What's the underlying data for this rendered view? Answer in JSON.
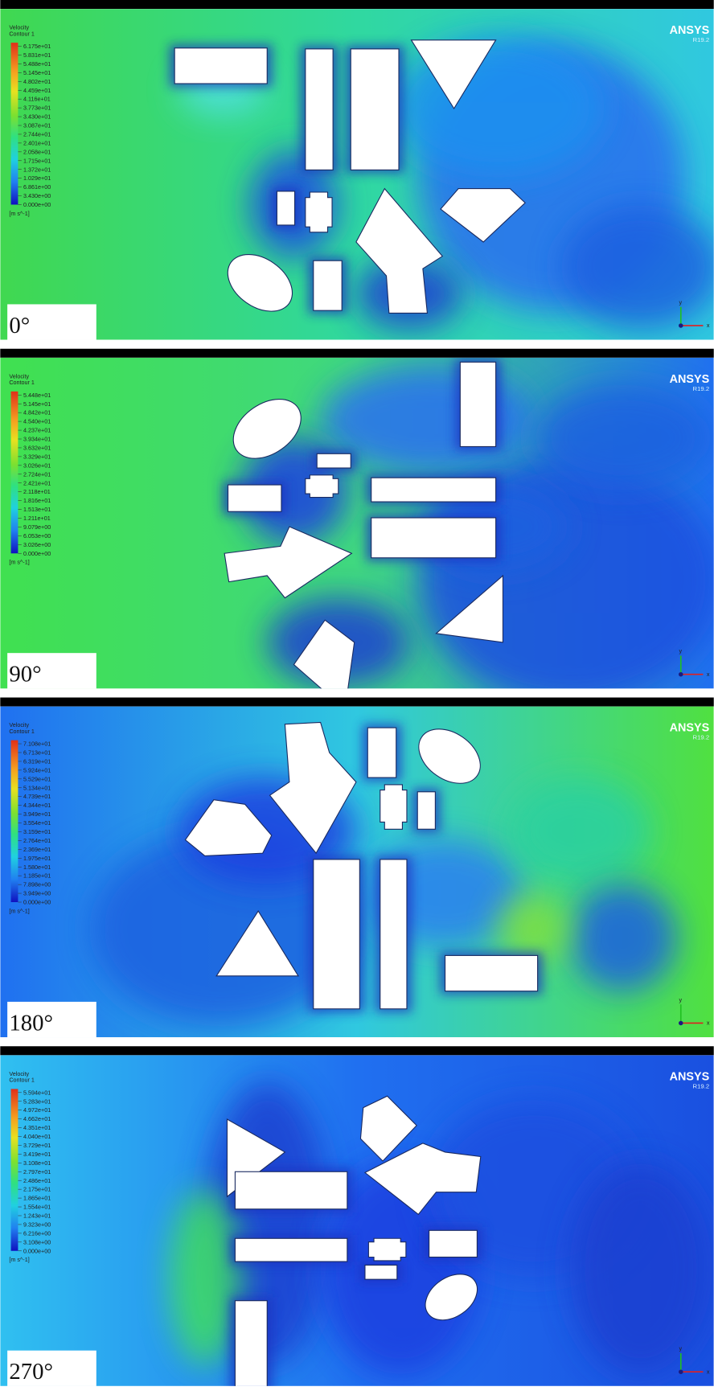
{
  "panels": [
    {
      "angle": "0°",
      "brand": "ANSYS",
      "version": "R19.2",
      "legend": {
        "title": "Velocity",
        "subtitle": "Contour 1",
        "unit": "[m s^-1]",
        "labels": [
          "6.175e+01",
          "5.831e+01",
          "5.488e+01",
          "5.145e+01",
          "4.802e+01",
          "4.459e+01",
          "4.116e+01",
          "3.773e+01",
          "3.430e+01",
          "3.087e+01",
          "2.744e+01",
          "2.401e+01",
          "2.058e+01",
          "1.715e+01",
          "1.372e+01",
          "1.029e+01",
          "6.861e+00",
          "3.430e+00",
          "0.000e+00"
        ]
      },
      "triad": {
        "x": "x",
        "y": "y"
      }
    },
    {
      "angle": "90°",
      "brand": "ANSYS",
      "version": "R19.2",
      "legend": {
        "title": "Velocity",
        "subtitle": "Contour 1",
        "unit": "[m s^-1]",
        "labels": [
          "5.448e+01",
          "5.145e+01",
          "4.842e+01",
          "4.540e+01",
          "4.237e+01",
          "3.934e+01",
          "3.632e+01",
          "3.329e+01",
          "3.026e+01",
          "2.724e+01",
          "2.421e+01",
          "2.118e+01",
          "1.816e+01",
          "1.513e+01",
          "1.211e+01",
          "9.079e+00",
          "6.053e+00",
          "3.026e+00",
          "0.000e+00"
        ]
      },
      "triad": {
        "x": "x",
        "y": "y"
      }
    },
    {
      "angle": "180°",
      "brand": "ANSYS",
      "version": "R19.2",
      "legend": {
        "title": "Velocity",
        "subtitle": "Contour 1",
        "unit": "[m s^-1]",
        "labels": [
          "7.108e+01",
          "6.713e+01",
          "6.319e+01",
          "5.924e+01",
          "5.529e+01",
          "5.134e+01",
          "4.739e+01",
          "4.344e+01",
          "3.949e+01",
          "3.554e+01",
          "3.159e+01",
          "2.764e+01",
          "2.369e+01",
          "1.975e+01",
          "1.580e+01",
          "1.185e+01",
          "7.898e+00",
          "3.949e+00",
          "0.000e+00"
        ]
      },
      "triad": {
        "x": "x",
        "y": "y"
      }
    },
    {
      "angle": "270°",
      "brand": "ANSYS",
      "version": "R19.2",
      "legend": {
        "title": "Velocity",
        "subtitle": "Contour 1",
        "unit": "[m s^-1]",
        "labels": [
          "5.594e+01",
          "5.283e+01",
          "4.972e+01",
          "4.662e+01",
          "4.351e+01",
          "4.040e+01",
          "3.729e+01",
          "3.419e+01",
          "3.108e+01",
          "2.797e+01",
          "2.486e+01",
          "2.175e+01",
          "1.865e+01",
          "1.554e+01",
          "1.243e+01",
          "9.323e+00",
          "6.216e+00",
          "3.108e+00",
          "0.000e+00"
        ]
      },
      "triad": {
        "x": "x",
        "y": "y"
      }
    }
  ]
}
